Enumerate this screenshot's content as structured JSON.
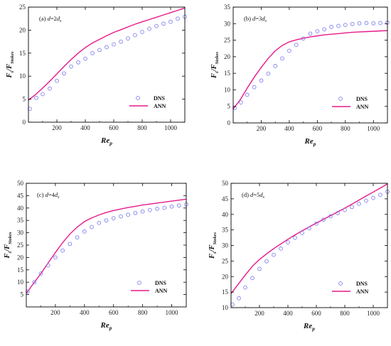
{
  "colors": {
    "dns": "#8080ee",
    "ann": "#e6198a",
    "axis": "#000000"
  },
  "chart_data": [
    {
      "type": "line",
      "annotation": {
        "prefix": "(a) ",
        "var": "d",
        "eq": "=2",
        "dvar": "d",
        "dsub": "s"
      },
      "xlabel": {
        "main": "Re",
        "sub": "p"
      },
      "ylabel": {
        "main": "F",
        "sub": "s",
        "slash": "/F",
        "sub2": "Stokes"
      },
      "xlim": [
        0,
        1100
      ],
      "ylim": [
        0,
        25
      ],
      "xticks": [
        "200",
        "400",
        "600",
        "800",
        "1000"
      ],
      "xtick_values": [
        200,
        400,
        600,
        800,
        1000
      ],
      "yticks": [
        "0",
        "5",
        "10",
        "15",
        "20",
        "25"
      ],
      "ytick_values": [
        0,
        5,
        10,
        15,
        20,
        25
      ],
      "legend": {
        "labels": [
          "DNS",
          "ANN"
        ]
      },
      "series": [
        {
          "name": "DNS",
          "style": "markers",
          "x": [
            10,
            55,
            100,
            150,
            200,
            250,
            300,
            350,
            400,
            450,
            500,
            550,
            600,
            650,
            700,
            750,
            800,
            850,
            900,
            950,
            1000,
            1050,
            1100
          ],
          "y": [
            2.9,
            5.3,
            6.1,
            7.3,
            9.0,
            10.6,
            12.1,
            13.0,
            13.8,
            15.0,
            15.7,
            16.3,
            16.9,
            17.5,
            18.2,
            18.9,
            19.6,
            20.3,
            20.9,
            21.4,
            21.8,
            22.5,
            22.9
          ]
        },
        {
          "name": "ANN",
          "style": "line",
          "x": [
            0,
            50,
            100,
            150,
            200,
            250,
            300,
            350,
            400,
            450,
            500,
            550,
            600,
            650,
            700,
            750,
            800,
            850,
            900,
            950,
            1000,
            1050,
            1100
          ],
          "y": [
            4.8,
            6.0,
            7.4,
            8.9,
            10.5,
            12.1,
            13.6,
            15.0,
            16.2,
            17.2,
            18.0,
            18.8,
            19.5,
            20.1,
            20.7,
            21.3,
            21.8,
            22.3,
            22.8,
            23.3,
            23.8,
            24.3,
            24.8
          ]
        }
      ]
    },
    {
      "type": "line",
      "annotation": {
        "prefix": "(b) ",
        "var": "d",
        "eq": "=3",
        "dvar": "d",
        "dsub": "s"
      },
      "xlabel": {
        "main": "Re",
        "sub": "p"
      },
      "ylabel": {
        "main": "F",
        "sub": "s",
        "slash": "/F",
        "sub2": "Stokes"
      },
      "xlim": [
        0,
        1100
      ],
      "ylim": [
        0,
        35
      ],
      "xticks": [
        "200",
        "400",
        "600",
        "800",
        "1000"
      ],
      "xtick_values": [
        200,
        400,
        600,
        800,
        1000
      ],
      "yticks": [
        "0",
        "5",
        "10",
        "15",
        "20",
        "25",
        "30",
        "35"
      ],
      "ytick_values": [
        0,
        5,
        10,
        15,
        20,
        25,
        30,
        35
      ],
      "legend": {
        "labels": [
          "DNS",
          "ANN"
        ]
      },
      "series": [
        {
          "name": "DNS",
          "style": "markers",
          "x": [
            10,
            55,
            100,
            150,
            200,
            250,
            300,
            350,
            400,
            450,
            500,
            550,
            600,
            650,
            700,
            750,
            800,
            850,
            900,
            950,
            1000,
            1050,
            1100
          ],
          "y": [
            4.5,
            6.2,
            8.5,
            10.8,
            12.8,
            14.9,
            17.2,
            19.5,
            21.8,
            23.6,
            25.5,
            27.0,
            27.7,
            28.3,
            29.0,
            29.3,
            29.6,
            29.9,
            30.1,
            30.2,
            30.1,
            30.2,
            30.3
          ]
        },
        {
          "name": "ANN",
          "style": "line",
          "x": [
            0,
            50,
            100,
            150,
            200,
            250,
            300,
            350,
            400,
            450,
            500,
            550,
            600,
            650,
            700,
            750,
            800,
            850,
            900,
            950,
            1000,
            1050,
            1100
          ],
          "y": [
            4.2,
            7.0,
            10.5,
            13.8,
            16.8,
            19.5,
            21.8,
            23.4,
            24.5,
            25.1,
            25.6,
            26.0,
            26.3,
            26.6,
            26.8,
            27.0,
            27.2,
            27.4,
            27.5,
            27.6,
            27.7,
            27.8,
            27.9
          ]
        }
      ]
    },
    {
      "type": "line",
      "annotation": {
        "prefix": "(c) ",
        "var": "d",
        "eq": "=4",
        "dvar": "d",
        "dsub": "s"
      },
      "xlabel": {
        "main": "Re",
        "sub": "p"
      },
      "ylabel": {
        "main": "F",
        "sub": "s",
        "slash": "/F",
        "sub2": "Stokes"
      },
      "xlim": [
        0,
        1100
      ],
      "ylim": [
        0,
        50
      ],
      "xticks": [
        "200",
        "400",
        "600",
        "800",
        "1000"
      ],
      "xtick_values": [
        200,
        400,
        600,
        800,
        1000
      ],
      "yticks": [
        "5",
        "10",
        "15",
        "20",
        "25",
        "30",
        "35",
        "40",
        "45",
        "50"
      ],
      "ytick_values": [
        5,
        10,
        15,
        20,
        25,
        30,
        35,
        40,
        45,
        50
      ],
      "legend": {
        "labels": [
          "DNS",
          "ANN"
        ]
      },
      "series": [
        {
          "name": "DNS",
          "style": "markers",
          "x": [
            10,
            55,
            100,
            150,
            200,
            250,
            300,
            350,
            400,
            450,
            500,
            550,
            600,
            650,
            700,
            750,
            800,
            850,
            900,
            950,
            1000,
            1050,
            1100
          ],
          "y": [
            6.2,
            10.0,
            13.5,
            16.8,
            20.0,
            22.8,
            25.5,
            28.1,
            30.5,
            32.3,
            34.0,
            35.0,
            35.9,
            36.6,
            37.3,
            38.0,
            38.6,
            39.2,
            39.7,
            40.1,
            40.6,
            41.0,
            41.5
          ]
        },
        {
          "name": "ANN",
          "style": "line",
          "x": [
            0,
            50,
            100,
            150,
            200,
            250,
            300,
            350,
            400,
            450,
            500,
            550,
            600,
            650,
            700,
            750,
            800,
            850,
            900,
            950,
            1000,
            1050,
            1100
          ],
          "y": [
            5.5,
            9.5,
            13.5,
            17.8,
            22.0,
            26.0,
            29.5,
            32.3,
            34.5,
            36.0,
            37.2,
            38.2,
            39.0,
            39.6,
            40.2,
            40.7,
            41.2,
            41.6,
            42.0,
            42.4,
            42.8,
            43.2,
            43.6
          ]
        }
      ]
    },
    {
      "type": "line",
      "annotation": {
        "prefix": "(d) ",
        "var": "d",
        "eq": "=5",
        "dvar": "d",
        "dsub": "s"
      },
      "xlabel": {
        "main": "Re",
        "sub": "p"
      },
      "ylabel": {
        "main": "F",
        "sub": "s",
        "slash": "/F",
        "sub2": "Stokes"
      },
      "xlim": [
        0,
        1100
      ],
      "ylim": [
        10,
        50
      ],
      "xticks": [
        "200",
        "400",
        "600",
        "800",
        "1000"
      ],
      "xtick_values": [
        200,
        400,
        600,
        800,
        1000
      ],
      "yticks": [
        "10",
        "15",
        "20",
        "25",
        "30",
        "35",
        "40",
        "45",
        "50"
      ],
      "ytick_values": [
        10,
        15,
        20,
        25,
        30,
        35,
        40,
        45,
        50
      ],
      "legend": {
        "labels": [
          "DNS",
          "ANN"
        ]
      },
      "series": [
        {
          "name": "DNS",
          "style": "markers",
          "x": [
            10,
            55,
            100,
            150,
            200,
            250,
            300,
            350,
            400,
            450,
            500,
            550,
            600,
            650,
            700,
            750,
            800,
            850,
            900,
            950,
            1000,
            1050,
            1100
          ],
          "y": [
            11.0,
            13.0,
            16.5,
            19.5,
            22.5,
            24.9,
            27.0,
            29.0,
            31.0,
            32.5,
            34.0,
            35.5,
            37.0,
            38.3,
            39.4,
            40.4,
            41.4,
            42.4,
            43.4,
            44.4,
            45.3,
            46.3,
            47.3
          ]
        },
        {
          "name": "ANN",
          "style": "line",
          "x": [
            0,
            50,
            100,
            150,
            200,
            250,
            300,
            350,
            400,
            450,
            500,
            550,
            600,
            650,
            700,
            750,
            800,
            850,
            900,
            950,
            1000,
            1050,
            1100
          ],
          "y": [
            14.5,
            17.5,
            20.5,
            23.3,
            25.5,
            27.3,
            29.0,
            30.5,
            32.0,
            33.4,
            34.7,
            36.0,
            37.2,
            38.4,
            39.6,
            40.8,
            42.0,
            43.3,
            44.6,
            45.9,
            47.2,
            48.5,
            49.8
          ]
        }
      ]
    }
  ]
}
